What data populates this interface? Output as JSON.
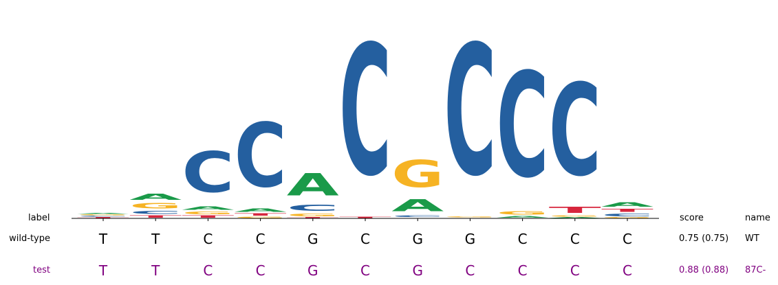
{
  "colors": {
    "A": "#1a9a49",
    "C": "#245f9f",
    "G": "#f6b324",
    "T": "#d7263d",
    "axis": "#000000",
    "test_text": "#800080",
    "wt_text": "#000000"
  },
  "headers": {
    "label": "label",
    "score": "score",
    "name": "name"
  },
  "rows": [
    {
      "label": "wild-type",
      "bases": [
        "T",
        "T",
        "C",
        "C",
        "G",
        "C",
        "G",
        "G",
        "C",
        "C",
        "C"
      ],
      "score": "0.75 (0.75)",
      "name": "WT",
      "color_key": "wt_text"
    },
    {
      "label": "test",
      "bases": [
        "T",
        "T",
        "C",
        "C",
        "G",
        "C",
        "G",
        "C",
        "C",
        "C",
        "C"
      ],
      "score": "0.88 (0.88)",
      "name": "87C-",
      "color_key": "test_text"
    }
  ],
  "logo_positions": [
    [
      [
        "T",
        0.02
      ],
      [
        "C",
        0.02
      ],
      [
        "G",
        0.02
      ],
      [
        "A",
        0.02
      ]
    ],
    [
      [
        "T",
        0.05
      ],
      [
        "C",
        0.07
      ],
      [
        "G",
        0.12
      ],
      [
        "A",
        0.15
      ]
    ],
    [
      [
        "T",
        0.05
      ],
      [
        "G",
        0.06
      ],
      [
        "A",
        0.08
      ],
      [
        "C",
        0.95
      ]
    ],
    [
      [
        "G",
        0.03
      ],
      [
        "T",
        0.05
      ],
      [
        "A",
        0.08
      ],
      [
        "C",
        1.5
      ]
    ],
    [
      [
        "T",
        0.02
      ],
      [
        "G",
        0.06
      ],
      [
        "C",
        0.15
      ],
      [
        "A",
        0.52
      ]
    ],
    [
      [
        "T",
        0.03
      ],
      [
        "C",
        3.05
      ]
    ],
    [
      [
        "T",
        0.01
      ],
      [
        "C",
        0.04
      ],
      [
        "A",
        0.28
      ],
      [
        "G",
        0.64
      ]
    ],
    [
      [
        "T",
        0.01
      ],
      [
        "G",
        0.02
      ],
      [
        "C",
        3.05
      ]
    ],
    [
      [
        "A",
        0.04
      ],
      [
        "G",
        0.08
      ],
      [
        "C",
        2.45
      ]
    ],
    [
      [
        "A",
        0.02
      ],
      [
        "G",
        0.03
      ],
      [
        "T",
        0.15
      ],
      [
        "C",
        2.15
      ]
    ],
    [
      [
        "G",
        0.02
      ],
      [
        "C",
        0.06
      ],
      [
        "T",
        0.07
      ],
      [
        "A",
        0.1
      ]
    ]
  ]
}
